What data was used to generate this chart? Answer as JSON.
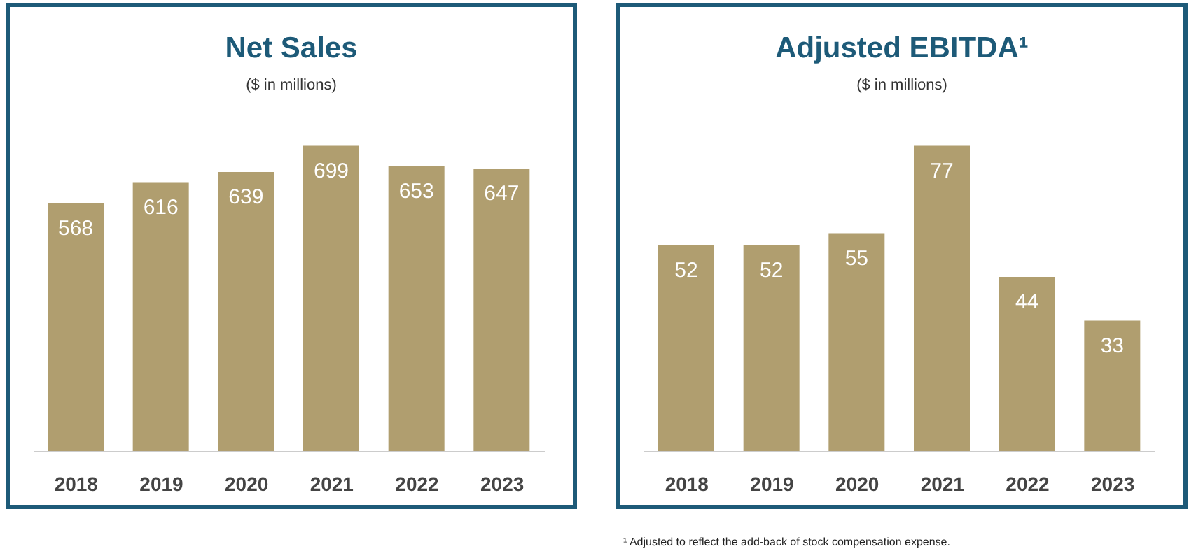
{
  "chart_data": [
    {
      "type": "bar",
      "title": "Net Sales",
      "subtitle": "($ in millions)",
      "categories": [
        "2018",
        "2019",
        "2020",
        "2021",
        "2022",
        "2023"
      ],
      "values": [
        568,
        616,
        639,
        699,
        653,
        647
      ],
      "color": "#b09e6f",
      "data_labels": true
    },
    {
      "type": "bar",
      "title": "Adjusted EBITDA¹",
      "subtitle": "($ in millions)",
      "categories": [
        "2018",
        "2019",
        "2020",
        "2021",
        "2022",
        "2023"
      ],
      "values": [
        52,
        52,
        55,
        77,
        44,
        33
      ],
      "color": "#b09e6f",
      "data_labels": true,
      "annotations": [
        "¹ Adjusted to reflect the add-back of stock compensation expense."
      ]
    }
  ]
}
